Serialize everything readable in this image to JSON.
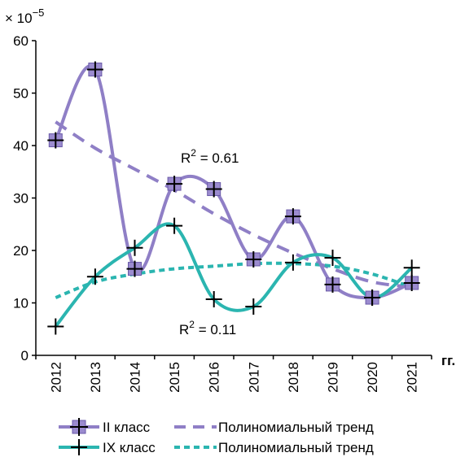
{
  "chart_data": {
    "type": "line",
    "title": "",
    "multiplier_label": "× 10",
    "multiplier_exp": "−5",
    "xlabel": "гг.",
    "ylabel": "",
    "ylim": [
      0,
      60
    ],
    "yticks": [
      "0",
      "10",
      "20",
      "30",
      "40",
      "50",
      "60"
    ],
    "categories": [
      "2012",
      "2013",
      "2014",
      "2015",
      "2016",
      "2017",
      "2018",
      "2019",
      "2020",
      "2021"
    ],
    "series": [
      {
        "name": "II класс",
        "role": "data",
        "color": "#8f7fc6",
        "marker": "square-plus",
        "values": [
          41,
          54.5,
          16.5,
          32.7,
          31.7,
          18.3,
          26.5,
          13.5,
          11,
          13.8
        ]
      },
      {
        "name": "IX класс",
        "role": "data",
        "color": "#2bb5b0",
        "marker": "plus",
        "values": [
          5.5,
          15,
          20.5,
          24.7,
          10.7,
          9.3,
          17.7,
          18.6,
          11,
          16.7
        ]
      },
      {
        "name": "Полиномиальный тренд",
        "role": "trend",
        "color": "#8f7fc6",
        "dash": "dashed",
        "values": [
          44.5,
          39.5,
          35.5,
          31.5,
          27,
          23,
          19.5,
          16.5,
          14,
          13
        ]
      },
      {
        "name": "Полиномиальный тренд",
        "role": "trend",
        "color": "#2bb5b0",
        "dash": "dotted",
        "values": [
          11,
          14,
          15.5,
          16.5,
          17,
          17.5,
          17.5,
          17,
          15.5,
          13
        ]
      }
    ],
    "annotations": [
      {
        "base": "R",
        "sup": "2",
        "text": " = 0.61"
      },
      {
        "base": "R",
        "sup": "2",
        "text": " = 0.11"
      }
    ],
    "grid": false,
    "legend": "bottom"
  }
}
